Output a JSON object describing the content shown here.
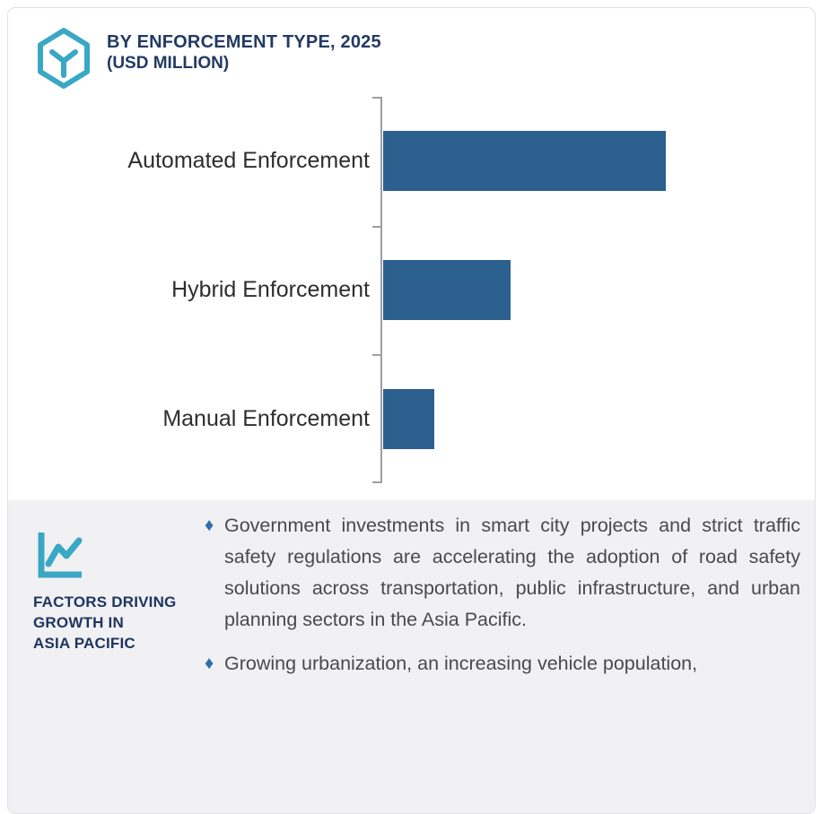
{
  "header": {
    "title": "BY ENFORCEMENT TYPE, 2025",
    "subtitle": "(USD MILLION)",
    "icon": "hexagon-cube-icon"
  },
  "colors": {
    "accent_teal": "#3AA7C5",
    "bar_blue": "#2B608F",
    "heading_navy": "#233A63",
    "bullet_diamond_blue": "#2E6EB0",
    "panel_background": "#F1F1F4",
    "axis_gray": "#9E9E9E",
    "body_text": "#4A4A4A"
  },
  "chart_data": {
    "type": "bar",
    "orientation": "horizontal",
    "title": "BY ENFORCEMENT TYPE, 2025 (USD MILLION)",
    "categories": [
      "Automated Enforcement",
      "Hybrid Enforcement",
      "Manual Enforcement"
    ],
    "values_pct_of_max": [
      100,
      45,
      18
    ],
    "value_labels_shown": false,
    "axis_tick_labels_shown": false,
    "grid": false,
    "legend": false,
    "bar_color": "#2B608F"
  },
  "factors": {
    "icon": "trend-chart-icon",
    "heading_lines": [
      "FACTORS DRIVING",
      "GROWTH IN",
      "ASIA PACIFIC"
    ],
    "bullet_marker": "♦",
    "bullets": [
      "Government investments in smart city projects and strict traffic safety regulations are accelerating the adoption of road safety solutions across transportation, public infrastructure, and urban planning sectors in the Asia Pacific.",
      "Growing urbanization, an increasing vehicle population,"
    ]
  }
}
